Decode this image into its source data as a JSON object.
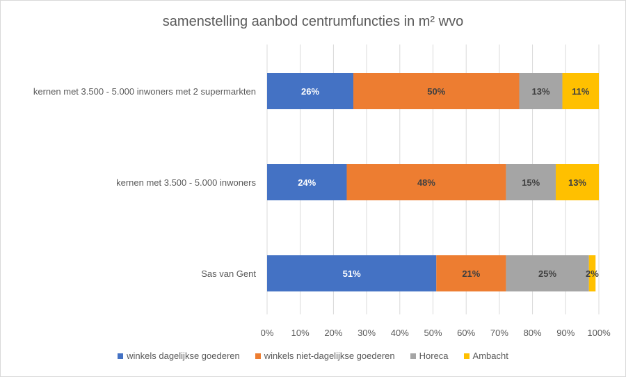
{
  "chart_data": {
    "type": "bar",
    "orientation": "horizontal",
    "stacked": "percent",
    "title": "samenstelling aanbod centrumfuncties in m² wvo",
    "categories": [
      "kernen met 3.500 - 5.000 inwoners met 2 supermarkten",
      "kernen met 3.500 - 5.000 inwoners",
      "Sas van Gent"
    ],
    "series": [
      {
        "name": "winkels dagelijkse goederen",
        "color": "#4472C4",
        "label_color": "#ffffff",
        "values": [
          26,
          24,
          51
        ],
        "labels": [
          "26%",
          "24%",
          "51%"
        ]
      },
      {
        "name": "winkels niet-dagelijkse goederen",
        "color": "#ED7D31",
        "label_color": "#404040",
        "values": [
          50,
          48,
          21
        ],
        "labels": [
          "50%",
          "48%",
          "21%"
        ]
      },
      {
        "name": "Horeca",
        "color": "#A5A5A5",
        "label_color": "#404040",
        "values": [
          13,
          15,
          25
        ],
        "labels": [
          "13%",
          "15%",
          "25%"
        ]
      },
      {
        "name": "Ambacht",
        "color": "#FFC000",
        "label_color": "#404040",
        "values": [
          11,
          13,
          2
        ],
        "labels": [
          "11%",
          "13%",
          "2%"
        ]
      }
    ],
    "xlim": [
      0,
      100
    ],
    "xticks": [
      "0%",
      "10%",
      "20%",
      "30%",
      "40%",
      "50%",
      "60%",
      "70%",
      "80%",
      "90%",
      "100%"
    ],
    "gridlines": "vertical",
    "legend_position": "bottom",
    "grid_color": "#d9d9d9"
  }
}
